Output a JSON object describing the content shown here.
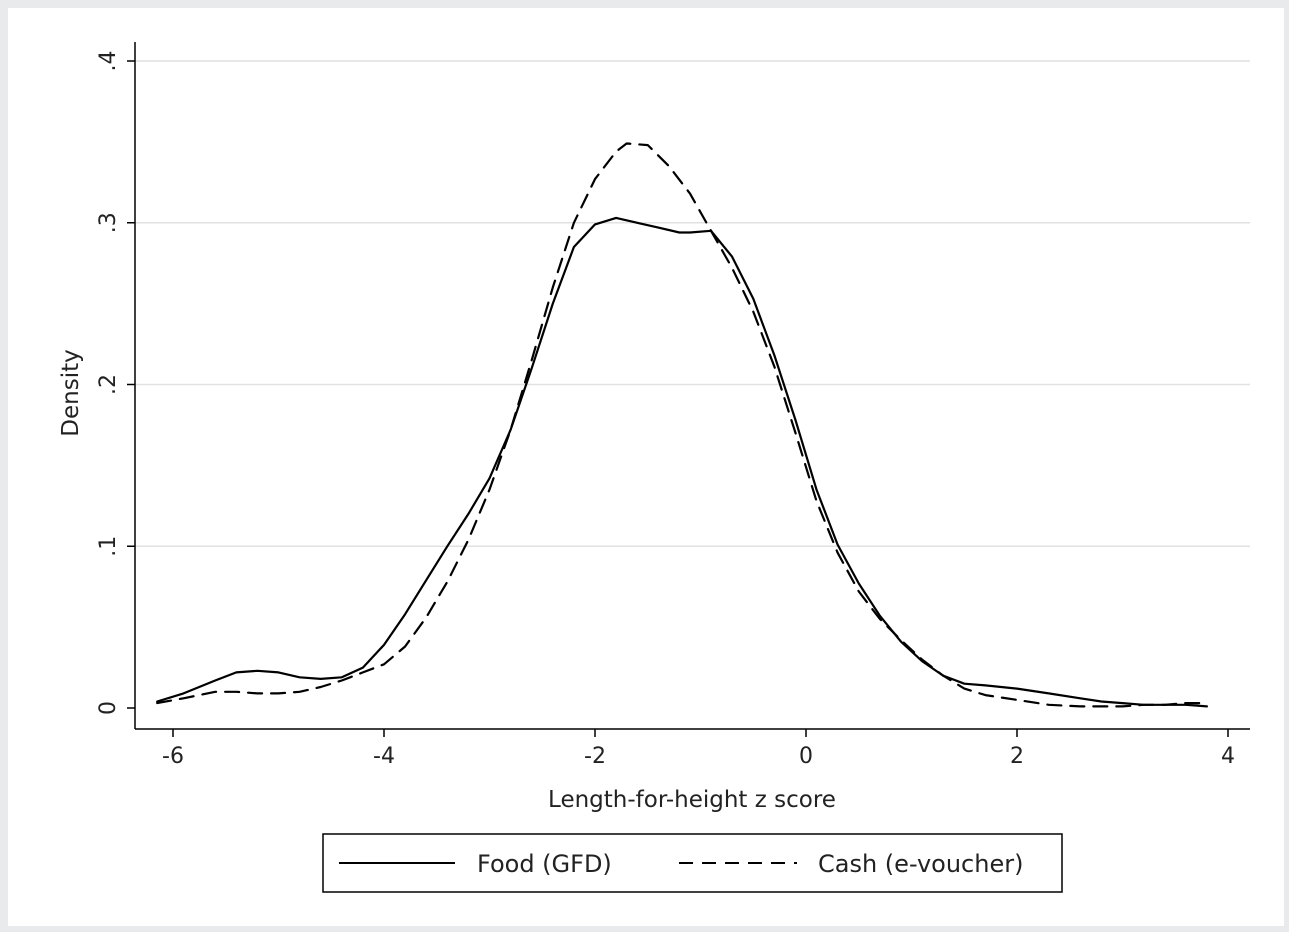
{
  "chart_data": {
    "type": "line",
    "title": "",
    "xlabel": "Length-for-height z score",
    "ylabel": "Density",
    "xlim": [
      -6.2,
      3.9
    ],
    "ylim": [
      0,
      0.4
    ],
    "x_ticks": [
      -6,
      -4,
      -2,
      0,
      2,
      4
    ],
    "x_tick_labels": [
      "-6",
      "-4",
      "-2",
      "0",
      "2",
      "4"
    ],
    "y_ticks": [
      0,
      0.1,
      0.2,
      0.3,
      0.4
    ],
    "y_tick_labels": [
      "0",
      ".1",
      ".2",
      ".3",
      ".4"
    ],
    "grid": "horizontal",
    "legend_position": "bottom",
    "series": [
      {
        "name": "Food (GFD)",
        "style": "solid",
        "color": "#000000",
        "x": [
          -6.15,
          -5.9,
          -5.6,
          -5.4,
          -5.2,
          -5.0,
          -4.8,
          -4.6,
          -4.4,
          -4.2,
          -4.0,
          -3.8,
          -3.6,
          -3.4,
          -3.2,
          -3.0,
          -2.8,
          -2.6,
          -2.4,
          -2.2,
          -2.0,
          -1.8,
          -1.6,
          -1.4,
          -1.2,
          -1.1,
          -0.9,
          -0.7,
          -0.5,
          -0.3,
          -0.1,
          0.1,
          0.3,
          0.5,
          0.7,
          0.9,
          1.1,
          1.3,
          1.5,
          1.7,
          2.0,
          2.3,
          2.6,
          2.8,
          3.0,
          3.2,
          3.4,
          3.6,
          3.8
        ],
        "y": [
          0.004,
          0.009,
          0.017,
          0.022,
          0.023,
          0.022,
          0.019,
          0.018,
          0.019,
          0.025,
          0.039,
          0.058,
          0.079,
          0.1,
          0.12,
          0.142,
          0.172,
          0.21,
          0.25,
          0.285,
          0.299,
          0.303,
          0.3,
          0.297,
          0.294,
          0.294,
          0.295,
          0.279,
          0.253,
          0.218,
          0.178,
          0.135,
          0.101,
          0.077,
          0.057,
          0.041,
          0.029,
          0.02,
          0.015,
          0.014,
          0.012,
          0.009,
          0.006,
          0.004,
          0.003,
          0.002,
          0.002,
          0.002,
          0.001
        ]
      },
      {
        "name": "Cash (e-voucher)",
        "style": "dashed",
        "color": "#000000",
        "x": [
          -6.15,
          -5.9,
          -5.6,
          -5.4,
          -5.2,
          -5.0,
          -4.8,
          -4.6,
          -4.4,
          -4.2,
          -4.0,
          -3.8,
          -3.6,
          -3.4,
          -3.2,
          -3.0,
          -2.8,
          -2.6,
          -2.4,
          -2.2,
          -2.0,
          -1.8,
          -1.7,
          -1.5,
          -1.3,
          -1.1,
          -0.9,
          -0.7,
          -0.5,
          -0.3,
          -0.1,
          0.1,
          0.3,
          0.5,
          0.7,
          0.9,
          1.1,
          1.3,
          1.5,
          1.7,
          2.0,
          2.3,
          2.6,
          2.8,
          3.0,
          3.2,
          3.4,
          3.6,
          3.8
        ],
        "y": [
          0.003,
          0.006,
          0.01,
          0.01,
          0.009,
          0.009,
          0.01,
          0.013,
          0.017,
          0.022,
          0.027,
          0.038,
          0.056,
          0.078,
          0.104,
          0.135,
          0.172,
          0.215,
          0.26,
          0.3,
          0.327,
          0.344,
          0.349,
          0.348,
          0.335,
          0.318,
          0.295,
          0.272,
          0.245,
          0.211,
          0.17,
          0.128,
          0.096,
          0.072,
          0.055,
          0.042,
          0.03,
          0.02,
          0.012,
          0.008,
          0.005,
          0.002,
          0.001,
          0.001,
          0.001,
          0.002,
          0.002,
          0.003,
          0.003
        ]
      }
    ]
  }
}
